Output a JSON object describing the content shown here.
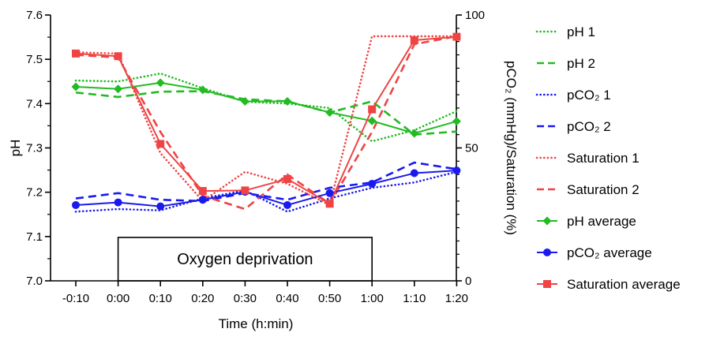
{
  "chart_data": {
    "type": "line",
    "x": [
      "-0:10",
      "0:00",
      "0:10",
      "0:20",
      "0:30",
      "0:40",
      "0:50",
      "1:00",
      "1:10",
      "1:20"
    ],
    "xlabel": "Time (h:min)",
    "ylabel": "pH",
    "ylabel_right": "pCO₂ (mmHg)/Saturation (%)",
    "ylim": [
      7.0,
      7.6
    ],
    "yticks": [
      7.0,
      7.1,
      7.2,
      7.3,
      7.4,
      7.5,
      7.6
    ],
    "ytick_labels": [
      "7.0",
      "7.1",
      "7.2",
      "7.3",
      "7.4",
      "7.5",
      "7.6"
    ],
    "ylim_right": [
      0,
      100
    ],
    "yticks_right": [
      0,
      50,
      100
    ],
    "ytick_labels_right": [
      "0",
      "50",
      "100"
    ],
    "annotation": {
      "text": "Oxygen deprivation",
      "x_start": "0:00",
      "x_end": "1:00"
    },
    "legend_position": "right",
    "series": [
      {
        "name": "pH 1",
        "axis": "left",
        "color": "#22bb22",
        "style": "dotted",
        "marker": "none",
        "values": [
          7.452,
          7.45,
          7.468,
          7.435,
          7.404,
          7.4,
          7.39,
          7.315,
          7.34,
          7.383
        ]
      },
      {
        "name": "pH 2",
        "axis": "left",
        "color": "#22bb22",
        "style": "dashed",
        "marker": "none",
        "values": [
          7.425,
          7.415,
          7.427,
          7.428,
          7.41,
          7.405,
          7.38,
          7.405,
          7.33,
          7.337
        ]
      },
      {
        "name": "pCO₂ 1",
        "axis": "right",
        "color": "#1a1aee",
        "style": "dotted",
        "marker": "none",
        "values": [
          26,
          27,
          26.5,
          31,
          34,
          26,
          31,
          35,
          37,
          41
        ]
      },
      {
        "name": "pCO₂ 2",
        "axis": "right",
        "color": "#1a1aee",
        "style": "dashed",
        "marker": "none",
        "values": [
          31,
          33,
          30.5,
          30,
          33,
          30.5,
          35,
          37,
          44.5,
          42
        ]
      },
      {
        "name": "Saturation 1",
        "axis": "right",
        "color": "#ee4444",
        "style": "dotted",
        "marker": "none",
        "values": [
          86,
          85.5,
          48,
          30,
          41,
          36.5,
          28.5,
          92,
          92,
          92
        ]
      },
      {
        "name": "Saturation 2",
        "axis": "right",
        "color": "#ee4444",
        "style": "dashed",
        "marker": "none",
        "values": [
          85,
          84,
          56,
          32,
          27,
          40,
          29,
          56,
          89,
          92
        ]
      },
      {
        "name": "pH average",
        "axis": "left",
        "color": "#22bb22",
        "style": "solid",
        "marker": "diamond",
        "values": [
          7.438,
          7.433,
          7.447,
          7.431,
          7.405,
          7.405,
          7.38,
          7.361,
          7.333,
          7.36
        ]
      },
      {
        "name": "pCO₂ average",
        "axis": "right",
        "color": "#1a1aee",
        "style": "solid",
        "marker": "circle",
        "values": [
          28.5,
          29.5,
          28,
          30.5,
          33.5,
          28.5,
          33,
          36.5,
          40.5,
          41.5
        ]
      },
      {
        "name": "Saturation average",
        "axis": "right",
        "color": "#ee4444",
        "style": "solid",
        "marker": "square",
        "values": [
          85.5,
          84.5,
          51.5,
          33.8,
          34,
          38.3,
          29,
          64.5,
          90.5,
          91.8
        ]
      }
    ]
  }
}
